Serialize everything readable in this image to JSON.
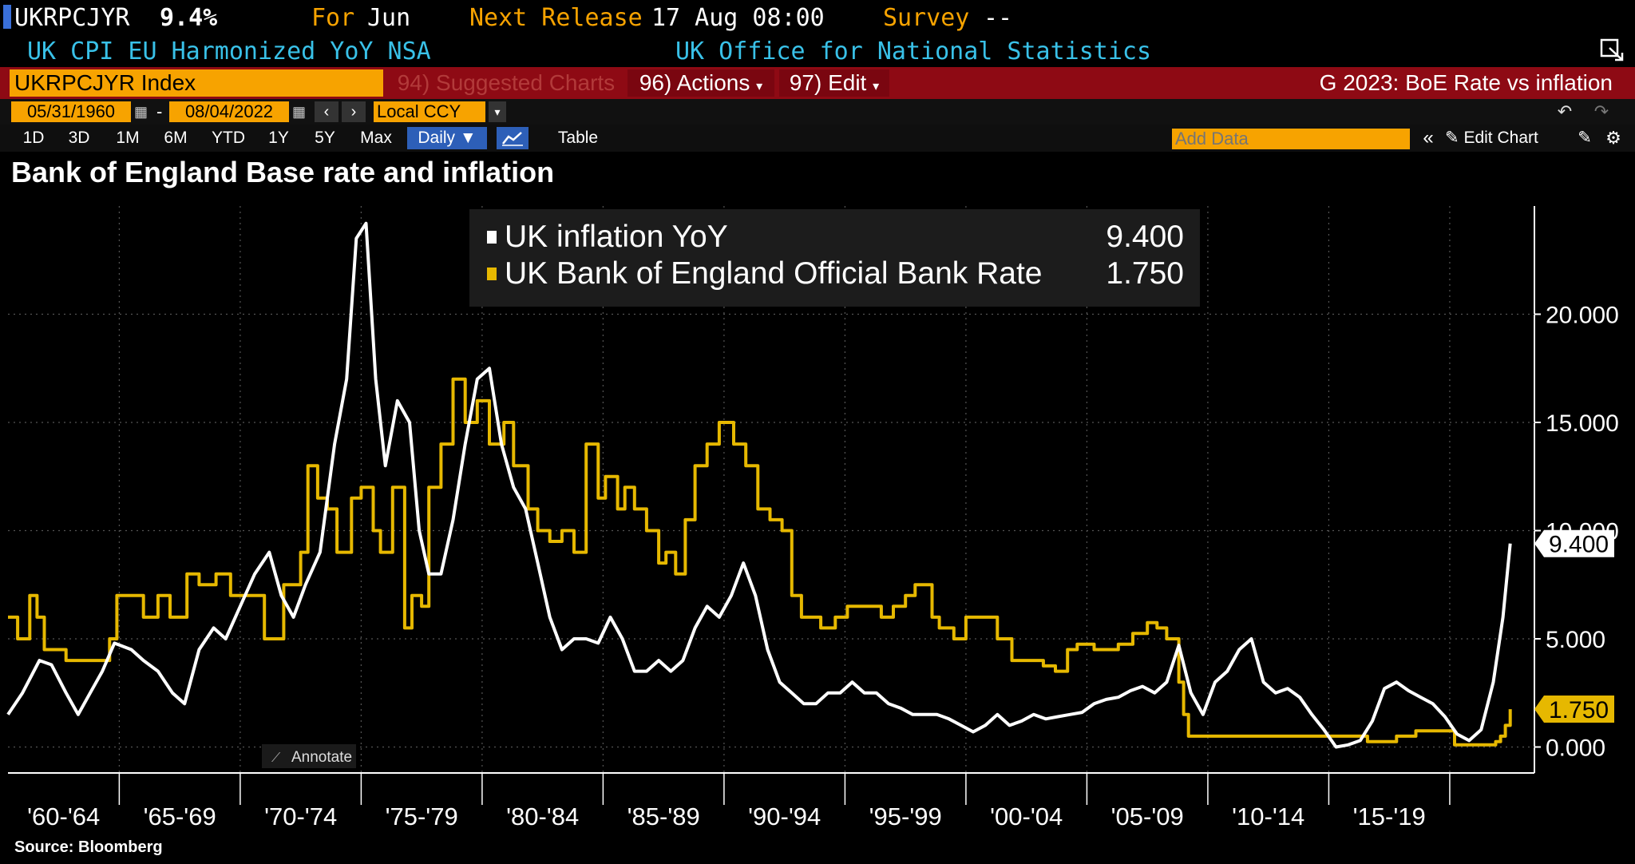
{
  "header": {
    "ticker": "UKRPCJYR",
    "value": "9.4%",
    "for_label": "For",
    "for_value": "Jun",
    "next_release_label": "Next Release",
    "next_release_value": "17 Aug 08:00",
    "survey_label": "Survey",
    "survey_value": "--",
    "description": "UK CPI EU Harmonized YoY NSA",
    "source_org": "UK Office for National Statistics"
  },
  "toolbar": {
    "security": "UKRPCJYR Index",
    "suggested": "94) Suggested Charts",
    "actions": "96) Actions",
    "edit": "97) Edit",
    "chart_name": "G 2023: BoE Rate vs inflation",
    "start_date": "05/31/1960",
    "end_date": "08/04/2022",
    "currency": "Local CCY",
    "periods": [
      "1D",
      "3D",
      "1M",
      "6M",
      "YTD",
      "1Y",
      "5Y",
      "Max"
    ],
    "frequency": "Daily ▼",
    "table": "Table",
    "add_data_placeholder": "Add Data",
    "edit_chart": "Edit Chart"
  },
  "annotate_label": "Annotate",
  "source": "Source: Bloomberg",
  "colors": {
    "inflation": "#ffffff",
    "bank_rate": "#e6b800",
    "accent": "#f7a300",
    "bar_red": "#8e0a14"
  },
  "chart_data": {
    "type": "line",
    "title": "Bank of England Base rate and inflation",
    "x_tick_labels": [
      "'60-'64",
      "'65-'69",
      "'70-'74",
      "'75-'79",
      "'80-'84",
      "'85-'89",
      "'90-'94",
      "'95-'99",
      "'00-'04",
      "'05-'09",
      "'10-'14",
      "'15-'19"
    ],
    "y_tick_labels": [
      "0.000",
      "5.000",
      "10.000",
      "15.000",
      "20.000"
    ],
    "ylim": [
      -1.2,
      25
    ],
    "xlim": [
      1960.4,
      2023.5
    ],
    "grid": true,
    "legend_position": "top-center",
    "series": [
      {
        "name": "UK inflation YoY",
        "last_value": "9.400",
        "x": [
          1960.4,
          1961.0,
          1961.7,
          1962.2,
          1962.8,
          1963.3,
          1963.8,
          1964.3,
          1964.8,
          1965.5,
          1966.0,
          1966.6,
          1967.2,
          1967.7,
          1968.3,
          1968.9,
          1969.4,
          1970.0,
          1970.6,
          1971.2,
          1971.7,
          1972.2,
          1972.7,
          1973.3,
          1973.9,
          1974.4,
          1974.8,
          1975.2,
          1975.6,
          1976.0,
          1976.5,
          1977.0,
          1977.4,
          1977.8,
          1978.3,
          1978.8,
          1979.3,
          1979.8,
          1980.3,
          1980.8,
          1981.3,
          1981.8,
          1982.3,
          1982.8,
          1983.3,
          1983.8,
          1984.3,
          1984.8,
          1985.3,
          1985.8,
          1986.3,
          1986.8,
          1987.3,
          1987.8,
          1988.3,
          1988.8,
          1989.3,
          1989.8,
          1990.3,
          1990.8,
          1991.3,
          1991.8,
          1992.3,
          1992.8,
          1993.3,
          1993.8,
          1994.3,
          1994.8,
          1995.3,
          1995.8,
          1996.3,
          1996.8,
          1997.3,
          1997.8,
          1998.3,
          1998.8,
          1999.3,
          1999.8,
          2000.3,
          2000.8,
          2001.3,
          2001.8,
          2002.3,
          2002.8,
          2003.3,
          2003.8,
          2004.3,
          2004.8,
          2005.3,
          2005.8,
          2006.3,
          2006.8,
          2007.3,
          2007.8,
          2008.3,
          2008.8,
          2009.3,
          2009.8,
          2010.3,
          2010.8,
          2011.3,
          2011.8,
          2012.3,
          2012.8,
          2013.3,
          2013.8,
          2014.3,
          2014.8,
          2015.3,
          2015.8,
          2016.3,
          2016.8,
          2017.3,
          2017.8,
          2018.3,
          2018.8,
          2019.3,
          2019.8,
          2020.3,
          2020.8,
          2021.3,
          2021.8,
          2022.2,
          2022.5
        ],
        "y": [
          1.5,
          2.5,
          4.0,
          3.8,
          2.5,
          1.5,
          2.5,
          3.5,
          4.8,
          4.5,
          4.0,
          3.5,
          2.5,
          2.0,
          4.5,
          5.5,
          5.0,
          6.5,
          8.0,
          9.0,
          7.0,
          6.0,
          7.5,
          9.0,
          14.0,
          17.0,
          23.5,
          24.2,
          17.0,
          13.0,
          16.0,
          15.0,
          10.0,
          8.0,
          8.0,
          10.5,
          14.0,
          17.0,
          17.5,
          14.0,
          12.0,
          11.0,
          8.5,
          6.0,
          4.5,
          5.0,
          5.0,
          4.8,
          6.0,
          5.0,
          3.5,
          3.5,
          4.0,
          3.5,
          4.0,
          5.5,
          6.5,
          6.0,
          7.0,
          8.5,
          7.0,
          4.5,
          3.0,
          2.5,
          2.0,
          2.0,
          2.5,
          2.5,
          3.0,
          2.5,
          2.5,
          2.0,
          1.8,
          1.5,
          1.5,
          1.5,
          1.3,
          1.0,
          0.7,
          1.0,
          1.5,
          1.0,
          1.2,
          1.5,
          1.3,
          1.4,
          1.5,
          1.6,
          2.0,
          2.2,
          2.3,
          2.6,
          2.8,
          2.5,
          3.0,
          4.7,
          2.5,
          1.5,
          3.0,
          3.5,
          4.5,
          5.0,
          3.0,
          2.5,
          2.7,
          2.3,
          1.5,
          0.8,
          0.0,
          0.1,
          0.3,
          1.2,
          2.7,
          3.0,
          2.6,
          2.3,
          2.0,
          1.4,
          0.6,
          0.3,
          0.8,
          3.0,
          6.0,
          9.4
        ]
      },
      {
        "name": "UK Bank of England Official Bank Rate",
        "last_value": "1.750",
        "x": [
          1960.4,
          1960.8,
          1961.3,
          1961.6,
          1961.9,
          1962.3,
          1962.8,
          1963.3,
          1964.0,
          1964.6,
          1964.9,
          1966.0,
          1966.6,
          1967.1,
          1967.8,
          1968.3,
          1969.0,
          1969.6,
          1970.3,
          1971.0,
          1971.3,
          1971.8,
          1972.5,
          1972.8,
          1973.2,
          1973.6,
          1974.0,
          1974.6,
          1975.0,
          1975.5,
          1975.8,
          1976.3,
          1976.8,
          1977.1,
          1977.5,
          1977.8,
          1978.3,
          1978.8,
          1979.3,
          1979.8,
          1980.3,
          1980.9,
          1981.3,
          1981.9,
          1982.3,
          1982.8,
          1983.3,
          1983.8,
          1984.3,
          1984.8,
          1985.1,
          1985.6,
          1985.9,
          1986.3,
          1986.8,
          1987.3,
          1987.6,
          1988.0,
          1988.4,
          1988.8,
          1989.3,
          1989.8,
          1990.4,
          1990.9,
          1991.4,
          1991.9,
          1992.4,
          1992.8,
          1993.2,
          1994.0,
          1994.6,
          1995.1,
          1995.9,
          1996.5,
          1997.0,
          1997.5,
          1997.9,
          1998.6,
          1998.9,
          1999.5,
          2000.0,
          2000.8,
          2001.3,
          2001.9,
          2002.5,
          2003.2,
          2003.7,
          2004.2,
          2004.6,
          2005.3,
          2005.7,
          2006.3,
          2006.9,
          2007.5,
          2007.9,
          2008.3,
          2008.8,
          2009.0,
          2009.2,
          2010.0,
          2012.0,
          2014.0,
          2016.0,
          2016.6,
          2017.8,
          2018.6,
          2019.5,
          2020.2,
          2020.3,
          2021.0,
          2021.9,
          2022.1,
          2022.3,
          2022.5
        ],
        "y": [
          6.0,
          5.0,
          7.0,
          6.0,
          4.5,
          4.5,
          4.0,
          4.0,
          4.0,
          5.0,
          7.0,
          6.0,
          7.0,
          6.0,
          8.0,
          7.5,
          8.0,
          7.0,
          7.0,
          5.0,
          5.0,
          7.5,
          9.0,
          13.0,
          11.5,
          11.0,
          9.0,
          11.5,
          12.0,
          10.0,
          9.0,
          12.0,
          5.5,
          7.0,
          6.5,
          12.0,
          14.0,
          17.0,
          15.0,
          16.0,
          14.0,
          15.0,
          13.0,
          11.0,
          10.0,
          9.5,
          10.0,
          9.0,
          14.0,
          11.5,
          12.5,
          11.0,
          12.0,
          11.0,
          10.0,
          8.5,
          9.0,
          8.0,
          10.5,
          13.0,
          14.0,
          15.0,
          14.0,
          13.0,
          11.0,
          10.5,
          10.0,
          7.0,
          6.0,
          5.5,
          6.0,
          6.5,
          6.5,
          6.0,
          6.5,
          7.0,
          7.5,
          6.0,
          5.5,
          5.0,
          6.0,
          6.0,
          5.0,
          4.0,
          4.0,
          3.75,
          3.5,
          4.5,
          4.75,
          4.5,
          4.5,
          4.75,
          5.25,
          5.75,
          5.5,
          5.0,
          3.0,
          1.5,
          0.5,
          0.5,
          0.5,
          0.5,
          0.5,
          0.25,
          0.5,
          0.75,
          0.75,
          0.1,
          0.1,
          0.1,
          0.25,
          0.5,
          1.0,
          1.75
        ]
      }
    ]
  }
}
